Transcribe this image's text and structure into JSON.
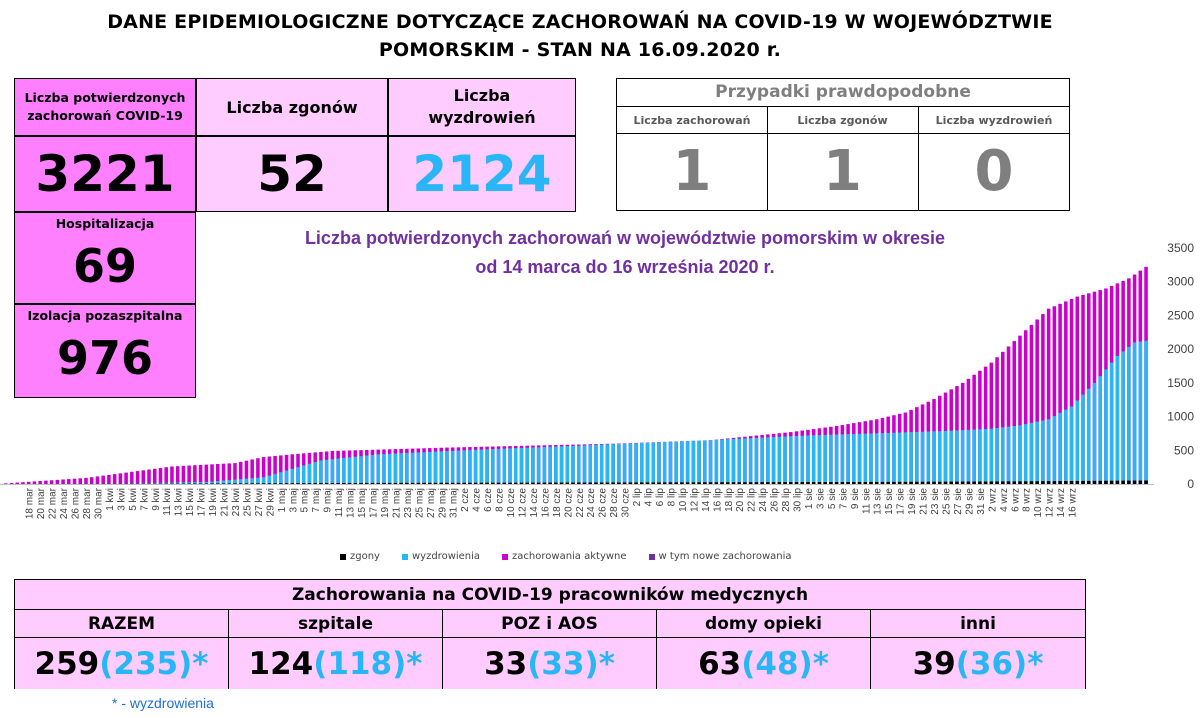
{
  "title": {
    "line1": "DANE EPIDEMIOLOGICZNE DOTYCZĄCE ZACHOROWAŃ NA COVID-19 W WOJEWÓDZTWIE",
    "line2": "POMORSKIM - STAN NA 16.09.2020 r."
  },
  "summary": {
    "confirmed_label": "Liczba potwierdzonych zachorowań COVID-19",
    "confirmed_value": "3221",
    "deaths_label": "Liczba zgonów",
    "deaths_value": "52",
    "recovered_label": "Liczba wyzdrowień",
    "recovered_value": "2124",
    "hospital_label": "Hospitalizacja",
    "hospital_value": "69",
    "isolation_label": "Izolacja pozaszpitalna",
    "isolation_value": "976"
  },
  "probable": {
    "title": "Przypadki prawdopodobne",
    "cases_label": "Liczba zachorowań",
    "cases_value": "1",
    "deaths_label": "Liczba zgonów",
    "deaths_value": "1",
    "recovered_label": "Liczba wyzdrowień",
    "recovered_value": "0"
  },
  "chart_subtitle": {
    "line1": "Liczba potwierdzonych zachorowań w województwie pomorskim w okresie",
    "line2": "od 14 marca do 16 września 2020 r."
  },
  "colors": {
    "zgony": "#000000",
    "wyzdrowienia": "#29b6f6",
    "aktywne": "#cc00cc",
    "nowe": "#7030a0"
  },
  "chart_data": {
    "type": "bar",
    "stacked": true,
    "title": "Liczba potwierdzonych zachorowań w województwie pomorskim w okresie od 14 marca do 16 września 2020 r.",
    "x_first": "14 mar",
    "x_last": "16 wrz",
    "x_labels": [
      "18 mar",
      "20 mar",
      "22 mar",
      "24 mar",
      "26 mar",
      "28 mar",
      "30 mar",
      "1 kwi",
      "3 kwi",
      "5 kwi",
      "7 kwi",
      "9 kwi",
      "11 kwi",
      "13 kwi",
      "15 kwi",
      "17 kwi",
      "19 kwi",
      "21 kwi",
      "23 kwi",
      "25 kwi",
      "27 kwi",
      "29 kwi",
      "1 maj",
      "3 maj",
      "5 maj",
      "7 maj",
      "9 maj",
      "11 maj",
      "13 maj",
      "15 maj",
      "17 maj",
      "19 maj",
      "21 maj",
      "23 maj",
      "25 maj",
      "27 maj",
      "29 maj",
      "31 maj",
      "2 cze",
      "4 cze",
      "6 cze",
      "8 cze",
      "10 cze",
      "12 cze",
      "14 cze",
      "16 cze",
      "18 cze",
      "20 cze",
      "22 cze",
      "24 cze",
      "26 cze",
      "28 cze",
      "30 cze",
      "2 lip",
      "4 lip",
      "6 lip",
      "8 lip",
      "10 lip",
      "12 lip",
      "14 lip",
      "16 lip",
      "18 lip",
      "20 lip",
      "22 lip",
      "24 lip",
      "26 lip",
      "28 lip",
      "30 lip",
      "1 sie",
      "3 sie",
      "5 sie",
      "7 sie",
      "9 sie",
      "11 sie",
      "13 sie",
      "15 sie",
      "17 sie",
      "19 sie",
      "21 sie",
      "23 sie",
      "25 sie",
      "27 sie",
      "29 sie",
      "31 sie",
      "2 wrz",
      "4 wrz",
      "6 wrz",
      "8 wrz",
      "10 wrz",
      "12 wrz",
      "14 wrz",
      "16 wrz"
    ],
    "y_ticks": [
      0,
      500,
      1000,
      1500,
      2000,
      2500,
      3000,
      3500
    ],
    "ylim": [
      0,
      3500
    ],
    "series": [
      {
        "name": "zgony",
        "key": "zgony"
      },
      {
        "name": "wyzdrowienia",
        "key": "wyzdrowienia"
      },
      {
        "name": "zachorowania aktywne",
        "key": "aktywne"
      },
      {
        "name": "w tym nowe zachorowania",
        "key": "nowe"
      }
    ],
    "anchors_total": [
      [
        0,
        10
      ],
      [
        14,
        90
      ],
      [
        29,
        260
      ],
      [
        40,
        310
      ],
      [
        45,
        400
      ],
      [
        50,
        440
      ],
      [
        57,
        490
      ],
      [
        77,
        540
      ],
      [
        107,
        600
      ],
      [
        123,
        650
      ],
      [
        137,
        770
      ],
      [
        145,
        860
      ],
      [
        152,
        960
      ],
      [
        157,
        1060
      ],
      [
        162,
        1260
      ],
      [
        167,
        1500
      ],
      [
        172,
        1800
      ],
      [
        177,
        2200
      ],
      [
        182,
        2600
      ],
      [
        187,
        2780
      ],
      [
        192,
        2900
      ],
      [
        196,
        3050
      ],
      [
        199,
        3221
      ]
    ],
    "anchors_recovered": [
      [
        0,
        0
      ],
      [
        20,
        5
      ],
      [
        35,
        30
      ],
      [
        45,
        100
      ],
      [
        55,
        350
      ],
      [
        65,
        440
      ],
      [
        80,
        500
      ],
      [
        100,
        570
      ],
      [
        120,
        640
      ],
      [
        140,
        720
      ],
      [
        155,
        760
      ],
      [
        165,
        790
      ],
      [
        172,
        820
      ],
      [
        177,
        870
      ],
      [
        182,
        960
      ],
      [
        186,
        1150
      ],
      [
        190,
        1500
      ],
      [
        194,
        1900
      ],
      [
        197,
        2100
      ],
      [
        199,
        2124
      ]
    ],
    "anchors_deaths": [
      [
        0,
        0
      ],
      [
        30,
        5
      ],
      [
        60,
        15
      ],
      [
        100,
        22
      ],
      [
        150,
        30
      ],
      [
        175,
        38
      ],
      [
        199,
        52
      ]
    ],
    "legend": [
      "zgony",
      "wyzdrowienia",
      "zachorowania aktywne",
      "w tym nowe zachorowania"
    ],
    "legend_position": "bottom",
    "grid": false
  },
  "medical": {
    "title": "Zachorowania na COVID-19 pracowników medycznych",
    "columns": [
      {
        "label": "RAZEM",
        "value": "259",
        "recovered": "(235)*"
      },
      {
        "label": "szpitale",
        "value": "124",
        "recovered": "(118)*"
      },
      {
        "label": "POZ i AOS",
        "value": "33",
        "recovered": "(33)*"
      },
      {
        "label": "domy opieki",
        "value": "63",
        "recovered": "(48)*"
      },
      {
        "label": "inni",
        "value": "39",
        "recovered": "(36)*"
      }
    ]
  },
  "footnote": "*  - wyzdrowienia"
}
